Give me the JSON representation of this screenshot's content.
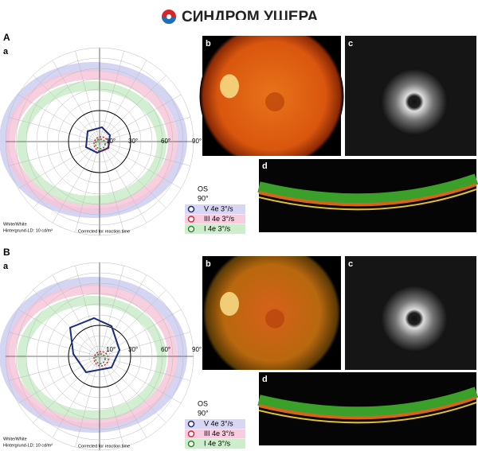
{
  "header": {
    "title": "СИНДРОМ УШЕРА"
  },
  "panels": [
    {
      "label": "A",
      "perimetry": {
        "label": "a",
        "angles": [
          "10°",
          "30°",
          "60°",
          "90°"
        ],
        "eye": "OS",
        "field": "90°",
        "legend": [
          "V 4e 3°/s",
          "III 4e 3°/s",
          "I 4e 3°/s"
        ],
        "notes": [
          "White/White",
          "Hintergrund-LD: 10 cd/m²"
        ],
        "correction": "Corrected for reaction time"
      },
      "fundus": {
        "label": "b"
      },
      "autofluorescence": {
        "label": "c"
      },
      "oct": {
        "label": "d"
      }
    },
    {
      "label": "B",
      "perimetry": {
        "label": "a",
        "angles": [
          "10°",
          "30°",
          "60°",
          "90°"
        ],
        "eye": "OS",
        "field": "90°",
        "legend": [
          "V 4e 3°/s",
          "III 4e 3°/s",
          "I 4e 3°/s"
        ],
        "notes": [
          "White/White",
          "Hintergrund-LD: 10 cd/m²"
        ],
        "correction": "Corrected for reaction time"
      },
      "fundus": {
        "label": "b"
      },
      "autofluorescence": {
        "label": "c"
      },
      "oct": {
        "label": "d"
      }
    }
  ]
}
